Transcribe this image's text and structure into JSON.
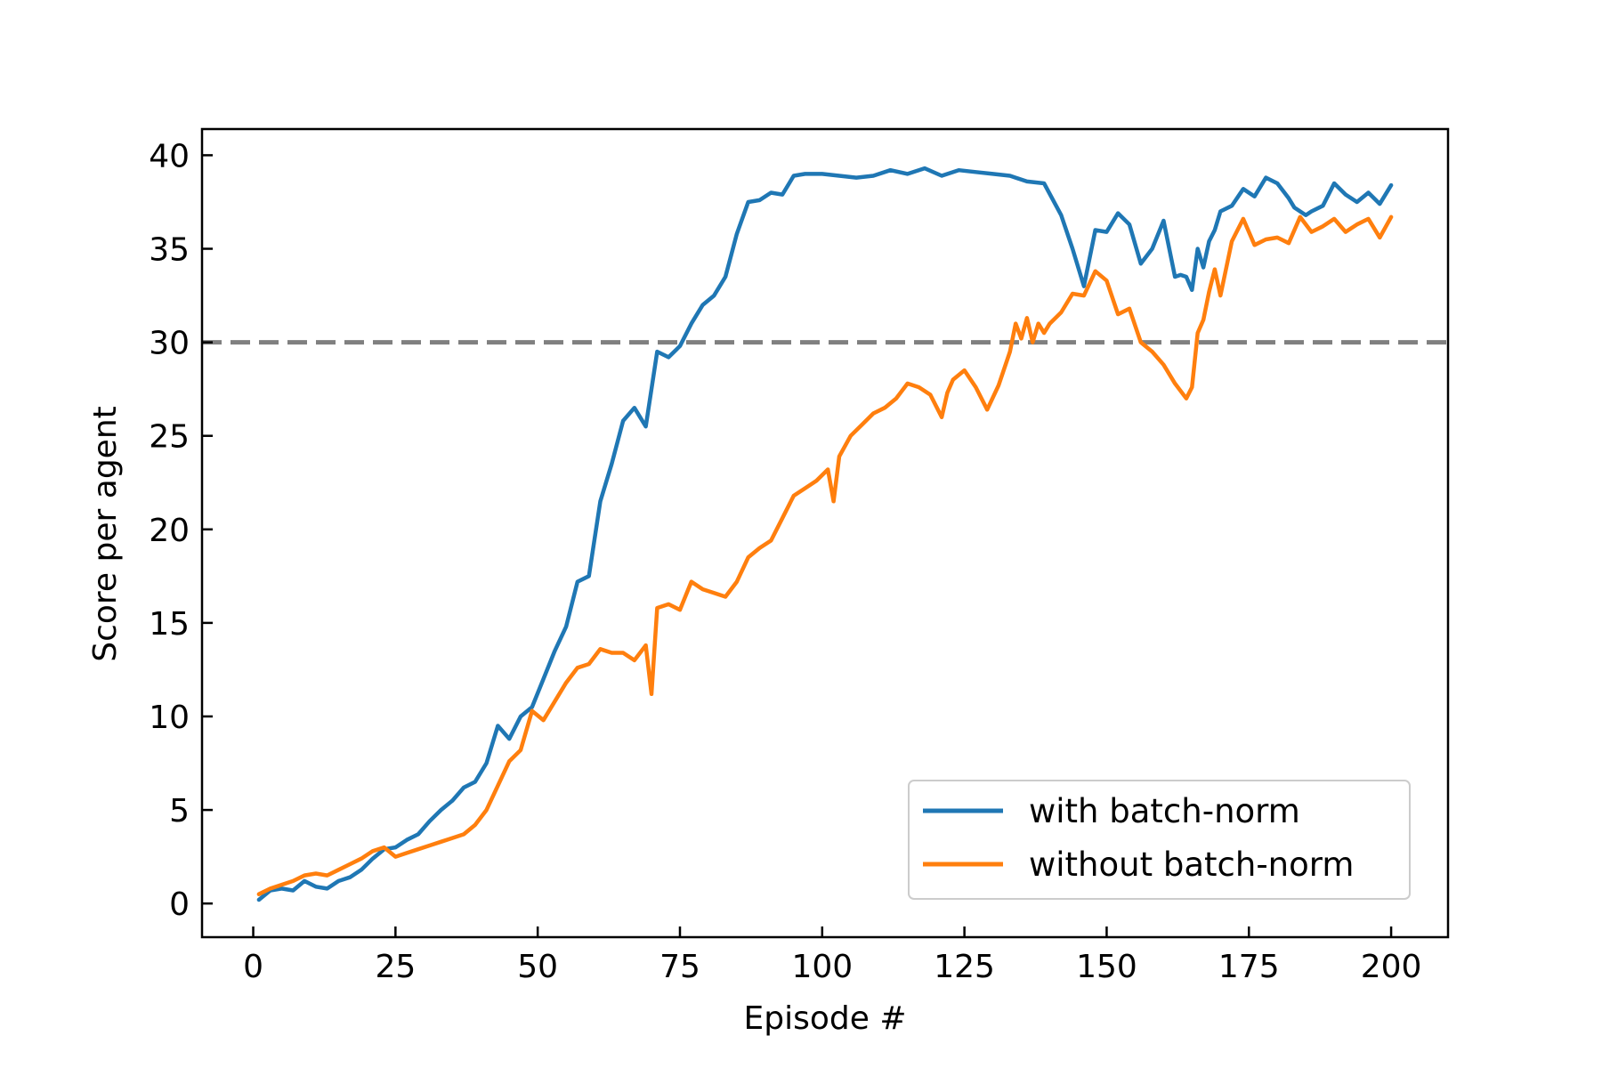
{
  "chart_data": {
    "type": "line",
    "xlabel": "Episode #",
    "ylabel": "Score per agent",
    "xlim": [
      -9,
      210
    ],
    "ylim": [
      -1.8,
      41.4
    ],
    "xticks": [
      0,
      25,
      50,
      75,
      100,
      125,
      150,
      175,
      200
    ],
    "yticks": [
      0,
      5,
      10,
      15,
      20,
      25,
      30,
      35,
      40
    ],
    "grid": false,
    "legend_position": "lower-right",
    "reference_line": {
      "y": 30,
      "style": "dashed",
      "color": "#808080"
    },
    "series": [
      {
        "name": "with batch-norm",
        "color": "#1f77b4",
        "x": [
          1,
          3,
          5,
          7,
          9,
          11,
          13,
          15,
          17,
          19,
          21,
          23,
          25,
          27,
          29,
          31,
          33,
          35,
          37,
          39,
          41,
          43,
          45,
          47,
          49,
          51,
          53,
          55,
          57,
          59,
          61,
          63,
          65,
          67,
          69,
          71,
          73,
          75,
          77,
          79,
          81,
          83,
          85,
          87,
          89,
          91,
          93,
          95,
          97,
          100,
          103,
          106,
          109,
          112,
          115,
          118,
          121,
          124,
          127,
          130,
          133,
          136,
          139,
          142,
          144,
          146,
          148,
          150,
          152,
          154,
          156,
          158,
          160,
          162,
          163,
          164,
          165,
          166,
          167,
          168,
          169,
          170,
          172,
          174,
          176,
          178,
          180,
          182,
          183,
          184,
          185,
          186,
          188,
          190,
          192,
          194,
          196,
          198,
          200
        ],
        "values": [
          0.2,
          0.7,
          0.8,
          0.7,
          1.2,
          0.9,
          0.8,
          1.2,
          1.4,
          1.8,
          2.4,
          2.9,
          3.0,
          3.4,
          3.7,
          4.4,
          5.0,
          5.5,
          6.2,
          6.5,
          7.5,
          9.5,
          8.8,
          10.0,
          10.5,
          12.0,
          13.5,
          14.8,
          17.2,
          17.5,
          21.5,
          23.5,
          25.8,
          26.5,
          25.5,
          29.5,
          29.2,
          29.8,
          31.0,
          32.0,
          32.5,
          33.5,
          35.8,
          37.5,
          37.6,
          38.0,
          37.9,
          38.9,
          39.0,
          39.0,
          38.9,
          38.8,
          38.9,
          39.2,
          39.0,
          39.3,
          38.9,
          39.2,
          39.1,
          39.0,
          38.9,
          38.6,
          38.5,
          36.8,
          35.0,
          33.0,
          36.0,
          35.9,
          36.9,
          36.3,
          34.2,
          35.0,
          36.5,
          33.5,
          33.6,
          33.5,
          32.8,
          35.0,
          34.0,
          35.4,
          36.0,
          37.0,
          37.3,
          38.2,
          37.8,
          38.8,
          38.5,
          37.7,
          37.2,
          37.0,
          36.8,
          37.0,
          37.3,
          38.5,
          37.9,
          37.5,
          38.0,
          37.4,
          38.4
        ]
      },
      {
        "name": "without batch-norm",
        "color": "#ff7f0e",
        "x": [
          1,
          3,
          5,
          7,
          9,
          11,
          13,
          15,
          17,
          19,
          21,
          23,
          25,
          27,
          29,
          31,
          33,
          35,
          37,
          39,
          41,
          43,
          45,
          47,
          49,
          51,
          53,
          55,
          57,
          59,
          61,
          63,
          65,
          67,
          69,
          70,
          71,
          73,
          75,
          77,
          79,
          81,
          83,
          85,
          87,
          89,
          91,
          93,
          95,
          97,
          99,
          101,
          102,
          103,
          105,
          107,
          109,
          111,
          113,
          115,
          117,
          119,
          121,
          122,
          123,
          125,
          127,
          129,
          131,
          133,
          134,
          135,
          136,
          137,
          138,
          139,
          140,
          142,
          144,
          146,
          148,
          150,
          152,
          154,
          156,
          158,
          160,
          162,
          164,
          165,
          166,
          167,
          168,
          169,
          170,
          172,
          174,
          176,
          178,
          180,
          182,
          184,
          186,
          188,
          190,
          192,
          194,
          196,
          198,
          200
        ],
        "values": [
          0.5,
          0.8,
          1.0,
          1.2,
          1.5,
          1.6,
          1.5,
          1.8,
          2.1,
          2.4,
          2.8,
          3.0,
          2.5,
          2.7,
          2.9,
          3.1,
          3.3,
          3.5,
          3.7,
          4.2,
          5.0,
          6.3,
          7.6,
          8.2,
          10.3,
          9.8,
          10.8,
          11.8,
          12.6,
          12.8,
          13.6,
          13.4,
          13.4,
          13.0,
          13.8,
          11.2,
          15.8,
          16.0,
          15.7,
          17.2,
          16.8,
          16.6,
          16.4,
          17.2,
          18.5,
          19.0,
          19.4,
          20.6,
          21.8,
          22.2,
          22.6,
          23.2,
          21.5,
          23.9,
          25.0,
          25.6,
          26.2,
          26.5,
          27.0,
          27.8,
          27.6,
          27.2,
          26.0,
          27.3,
          28.0,
          28.5,
          27.6,
          26.4,
          27.7,
          29.5,
          31.0,
          30.2,
          31.3,
          30.0,
          31.0,
          30.5,
          31.0,
          31.6,
          32.6,
          32.5,
          33.8,
          33.3,
          31.5,
          31.8,
          30.0,
          29.5,
          28.8,
          27.8,
          27.0,
          27.6,
          30.5,
          31.2,
          32.7,
          33.9,
          32.5,
          35.4,
          36.6,
          35.2,
          35.5,
          35.6,
          35.3,
          36.7,
          35.9,
          36.2,
          36.6,
          35.9,
          36.3,
          36.6,
          35.6,
          36.7
        ]
      }
    ]
  }
}
